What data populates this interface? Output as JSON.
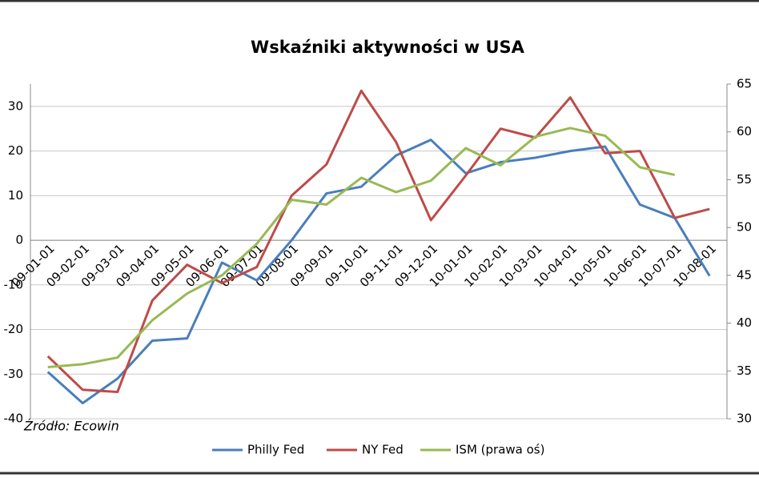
{
  "chart_data": {
    "type": "line",
    "title": "Wskaźniki aktywności w USA",
    "annotation": "Źródło: Ecowin",
    "categories": [
      "09-01-01",
      "09-02-01",
      "09-03-01",
      "09-04-01",
      "09-05-01",
      "09-06-01",
      "09-07-01",
      "09-08-01",
      "09-09-01",
      "09-10-01",
      "09-11-01",
      "09-12-01",
      "10-01-01",
      "10-02-01",
      "10-03-01",
      "10-04-01",
      "10-05-01",
      "10-06-01",
      "10-07-01",
      "10-08-01"
    ],
    "series": [
      {
        "name": "Philly Fed",
        "color": "#4a7ebb",
        "values": [
          -29.5,
          -36.5,
          -31,
          -22.5,
          -22,
          -5,
          -9,
          0,
          10.5,
          12,
          19,
          22.5,
          15,
          17.5,
          18.5,
          20,
          21,
          8,
          5,
          -8
        ]
      },
      {
        "name": "NY Fed",
        "color": "#be4b48",
        "values": [
          -26,
          -33.5,
          -34,
          -13.5,
          -5.5,
          -9.6,
          -6,
          10,
          17,
          33.5,
          22,
          4.5,
          14.5,
          25,
          23,
          32,
          19.5,
          20,
          5,
          7
        ]
      },
      {
        "name": "ISM (prawa oś)",
        "color": "#98b954",
        "axis": "y2",
        "values": [
          35.4,
          35.7,
          36.4,
          40.3,
          43.1,
          45,
          48.3,
          52.9,
          52.4,
          55.2,
          53.7,
          54.9,
          58.3,
          56.5,
          59.5,
          60.4,
          59.6,
          56.3,
          55.5,
          null
        ]
      }
    ],
    "ylim": [
      -40,
      35
    ],
    "yticks": [
      -40,
      -30,
      -20,
      -10,
      0,
      10,
      20,
      30
    ],
    "y2lim": [
      30,
      65
    ],
    "y2ticks": [
      30,
      35,
      40,
      45,
      50,
      55,
      60,
      65
    ],
    "grid": true,
    "legend": "bottom"
  }
}
